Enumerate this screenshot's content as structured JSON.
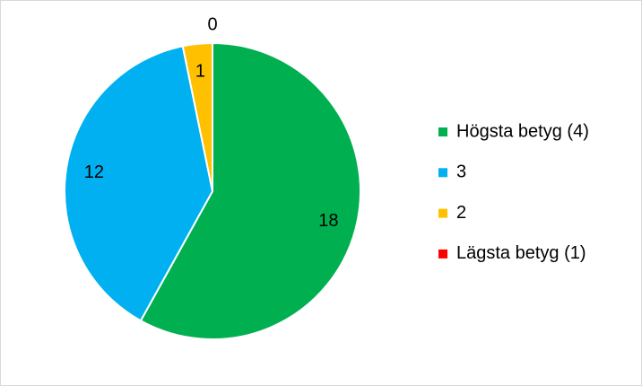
{
  "chart_data": {
    "type": "pie",
    "categories": [
      "Högsta betyg (4)",
      "3",
      "2",
      "Lägsta betyg (1)"
    ],
    "values": [
      18,
      12,
      1,
      0
    ],
    "colors": [
      "#00b050",
      "#00b0f0",
      "#ffc000",
      "#ff0000"
    ],
    "legend": "right"
  }
}
